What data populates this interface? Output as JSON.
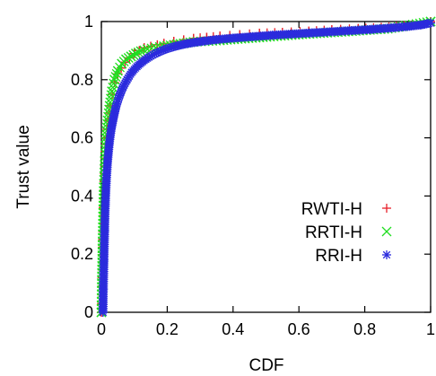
{
  "chart_data": {
    "type": "scatter",
    "title": "",
    "xlabel": "CDF",
    "ylabel": "Trust value",
    "xlim": [
      0,
      1
    ],
    "ylim": [
      0,
      1
    ],
    "xticks": [
      "0",
      "0.2",
      "0.4",
      "0.6",
      "0.8",
      "1"
    ],
    "yticks": [
      "0",
      "0.2",
      "0.4",
      "0.6",
      "0.8",
      "1"
    ],
    "legend_position": "right",
    "series": [
      {
        "name": "RWTI-H",
        "marker": "plus",
        "color": "#e8202a",
        "points": [
          [
            0.0,
            0.0
          ],
          [
            0.002,
            0.12
          ],
          [
            0.004,
            0.25
          ],
          [
            0.006,
            0.36
          ],
          [
            0.008,
            0.45
          ],
          [
            0.011,
            0.53
          ],
          [
            0.015,
            0.6
          ],
          [
            0.02,
            0.66
          ],
          [
            0.026,
            0.71
          ],
          [
            0.033,
            0.75
          ],
          [
            0.04,
            0.79
          ],
          [
            0.05,
            0.82
          ],
          [
            0.06,
            0.84
          ],
          [
            0.072,
            0.86
          ],
          [
            0.085,
            0.875
          ],
          [
            0.1,
            0.89
          ],
          [
            0.115,
            0.9
          ],
          [
            0.13,
            0.91
          ],
          [
            0.15,
            0.915
          ],
          [
            0.17,
            0.92
          ],
          [
            0.19,
            0.925
          ],
          [
            0.22,
            0.932
          ],
          [
            0.25,
            0.937
          ],
          [
            0.28,
            0.942
          ],
          [
            0.32,
            0.946
          ],
          [
            0.36,
            0.95
          ],
          [
            0.42,
            0.955
          ],
          [
            0.48,
            0.96
          ],
          [
            0.55,
            0.963
          ],
          [
            0.63,
            0.967
          ],
          [
            0.7,
            0.972
          ],
          [
            0.78,
            0.976
          ],
          [
            0.85,
            0.98
          ],
          [
            0.92,
            0.985
          ],
          [
            0.97,
            0.99
          ],
          [
            1.0,
            1.0
          ]
        ]
      },
      {
        "name": "RRTI-H",
        "marker": "cross",
        "color": "#20dd20",
        "points": [
          [
            0.0,
            0.0
          ],
          [
            0.001,
            0.1
          ],
          [
            0.003,
            0.22
          ],
          [
            0.005,
            0.33
          ],
          [
            0.007,
            0.43
          ],
          [
            0.01,
            0.52
          ],
          [
            0.014,
            0.6
          ],
          [
            0.019,
            0.66
          ],
          [
            0.025,
            0.71
          ],
          [
            0.032,
            0.76
          ],
          [
            0.04,
            0.8
          ],
          [
            0.05,
            0.83
          ],
          [
            0.062,
            0.855
          ],
          [
            0.075,
            0.87
          ],
          [
            0.09,
            0.88
          ],
          [
            0.105,
            0.89
          ],
          [
            0.12,
            0.898
          ],
          [
            0.14,
            0.905
          ],
          [
            0.165,
            0.91
          ],
          [
            0.19,
            0.915
          ],
          [
            0.23,
            0.922
          ],
          [
            0.28,
            0.93
          ],
          [
            0.36,
            0.935
          ],
          [
            0.48,
            0.945
          ],
          [
            0.6,
            0.955
          ],
          [
            0.74,
            0.965
          ],
          [
            0.87,
            0.975
          ],
          [
            1.0,
            1.0
          ]
        ]
      },
      {
        "name": "RRI-H",
        "marker": "star",
        "color": "#2b2bdd",
        "points": [
          [
            0.005,
            0.0
          ],
          [
            0.006,
            0.08
          ],
          [
            0.008,
            0.18
          ],
          [
            0.01,
            0.28
          ],
          [
            0.012,
            0.37
          ],
          [
            0.015,
            0.45
          ],
          [
            0.019,
            0.52
          ],
          [
            0.024,
            0.58
          ],
          [
            0.03,
            0.63
          ],
          [
            0.037,
            0.67
          ],
          [
            0.045,
            0.71
          ],
          [
            0.055,
            0.745
          ],
          [
            0.066,
            0.775
          ],
          [
            0.078,
            0.8
          ],
          [
            0.092,
            0.825
          ],
          [
            0.108,
            0.845
          ],
          [
            0.125,
            0.862
          ],
          [
            0.145,
            0.878
          ],
          [
            0.168,
            0.892
          ],
          [
            0.195,
            0.905
          ],
          [
            0.225,
            0.915
          ],
          [
            0.26,
            0.924
          ],
          [
            0.3,
            0.931
          ],
          [
            0.35,
            0.938
          ],
          [
            0.4,
            0.943
          ],
          [
            0.46,
            0.948
          ],
          [
            0.52,
            0.953
          ],
          [
            0.58,
            0.957
          ],
          [
            0.64,
            0.961
          ],
          [
            0.7,
            0.965
          ],
          [
            0.76,
            0.969
          ],
          [
            0.82,
            0.973
          ],
          [
            0.88,
            0.978
          ],
          [
            0.93,
            0.983
          ],
          [
            0.97,
            0.988
          ],
          [
            1.0,
            0.995
          ]
        ]
      }
    ]
  }
}
